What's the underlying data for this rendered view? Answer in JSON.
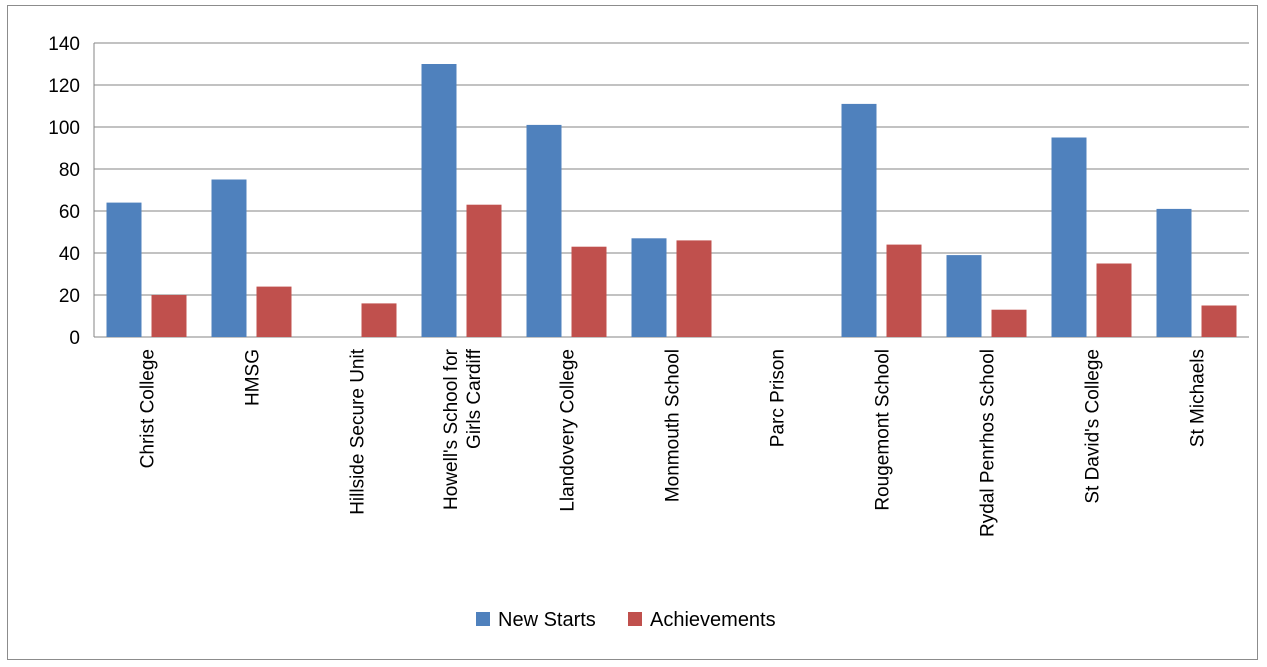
{
  "chart_data": {
    "type": "bar",
    "title": "",
    "xlabel": "",
    "ylabel": "",
    "ylim": [
      0,
      140
    ],
    "yticks": [
      0,
      20,
      40,
      60,
      80,
      100,
      120,
      140
    ],
    "grid": true,
    "legend_position": "bottom",
    "categories": [
      [
        "Christ College"
      ],
      [
        "HMSG"
      ],
      [
        "Hillside Secure Unit"
      ],
      [
        "Howell's School for",
        "Girls Cardiff"
      ],
      [
        "Llandovery College"
      ],
      [
        "Monmouth School"
      ],
      [
        "Parc Prison"
      ],
      [
        "Rougemont School"
      ],
      [
        "Rydal Penrhos School"
      ],
      [
        "St  David's College"
      ],
      [
        "St Michaels"
      ]
    ],
    "series": [
      {
        "name": "New Starts",
        "color": "#4f81bd",
        "values": [
          64,
          75,
          0,
          130,
          101,
          47,
          0,
          111,
          39,
          95,
          61
        ]
      },
      {
        "name": "Achievements",
        "color": "#c0504d",
        "values": [
          20,
          24,
          16,
          63,
          43,
          46,
          0,
          44,
          13,
          35,
          15
        ]
      }
    ]
  }
}
